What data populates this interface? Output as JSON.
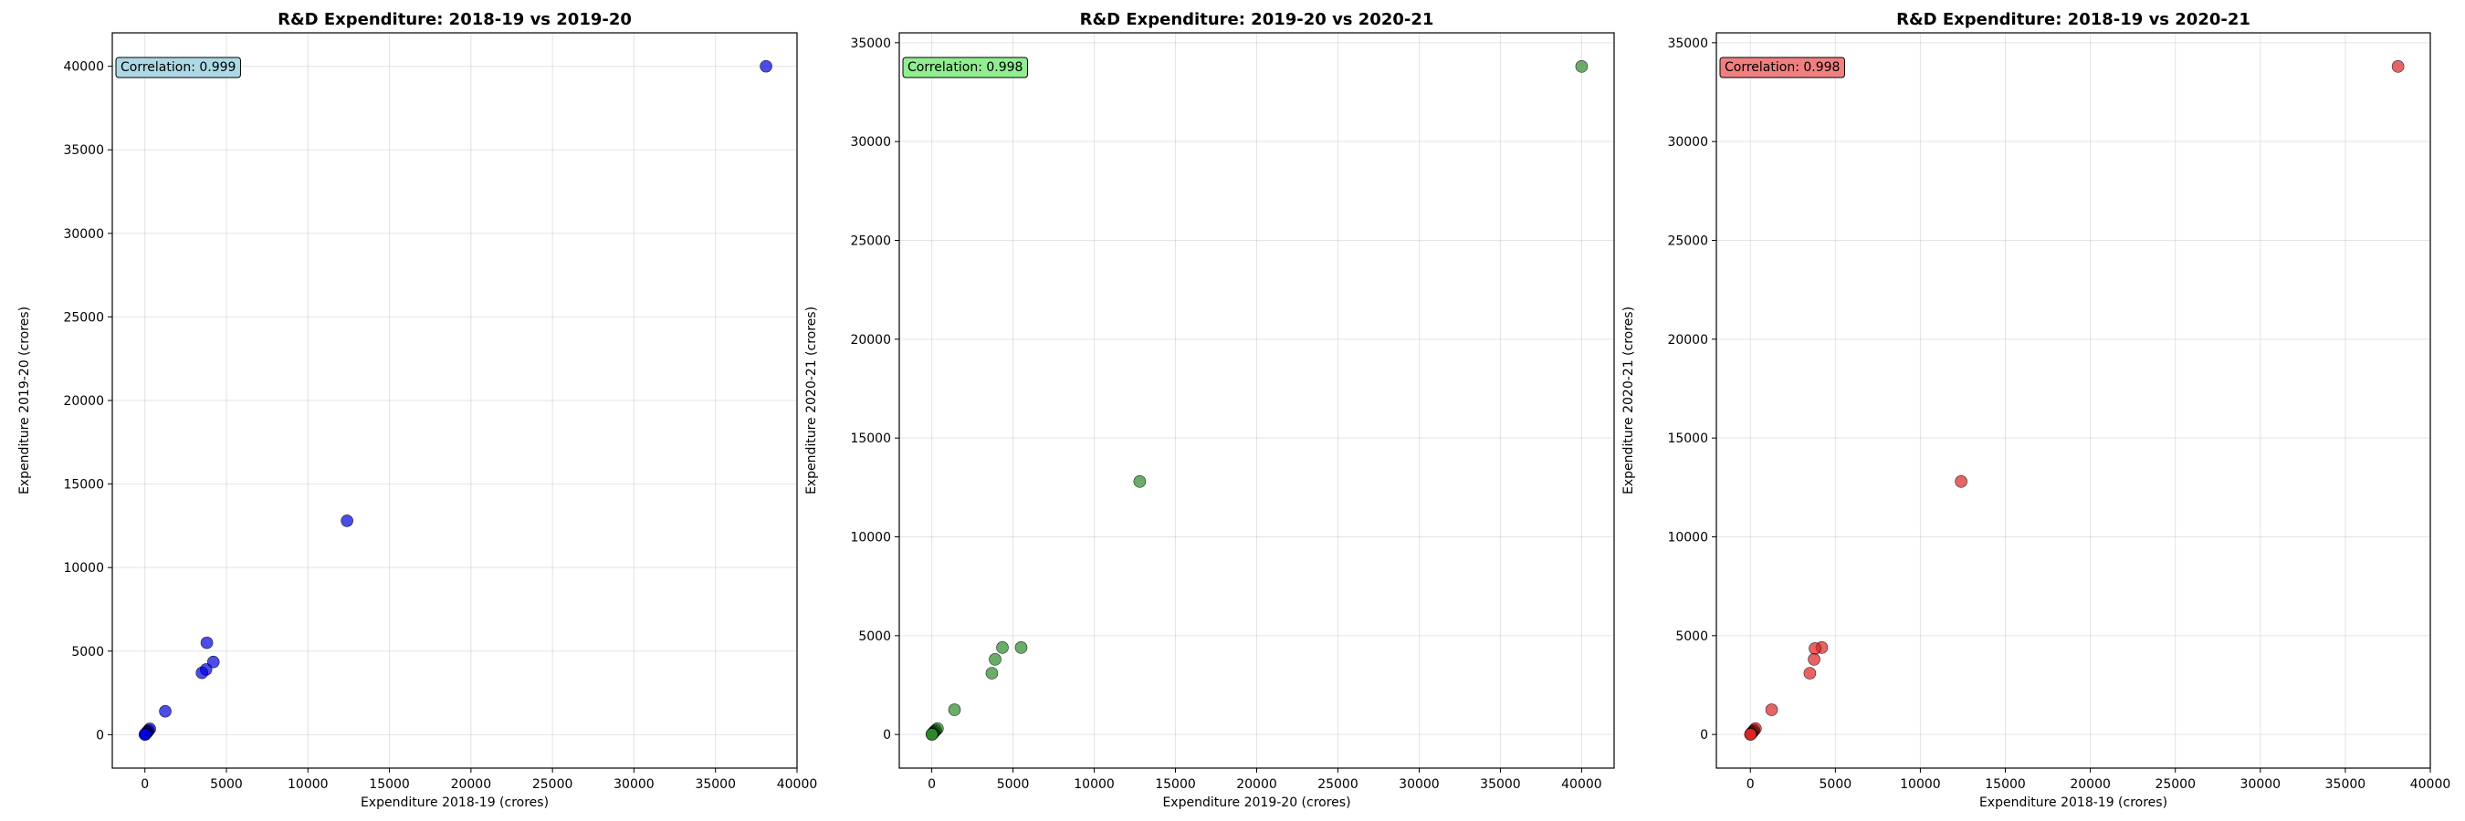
{
  "chart_data": [
    {
      "type": "scatter",
      "title": "R&D Expenditure: 2018-19 vs 2019-20",
      "xlabel": "Expenditure 2018-19 (crores)",
      "ylabel": "Expenditure 2019-20 (crores)",
      "xlim": [
        -2000,
        40000
      ],
      "ylim": [
        -2000,
        42000
      ],
      "xticks": [
        0,
        5000,
        10000,
        15000,
        20000,
        25000,
        30000,
        35000,
        40000
      ],
      "yticks": [
        0,
        5000,
        10000,
        15000,
        20000,
        25000,
        30000,
        35000,
        40000
      ],
      "grid": true,
      "annotation": "Correlation: 0.999",
      "annotation_color": "#add8e6",
      "point_color": "#0000dd",
      "points": [
        {
          "x": 38100,
          "y": 40000
        },
        {
          "x": 12400,
          "y": 12800
        },
        {
          "x": 3800,
          "y": 5500
        },
        {
          "x": 4200,
          "y": 4350
        },
        {
          "x": 3750,
          "y": 3900
        },
        {
          "x": 3500,
          "y": 3700
        },
        {
          "x": 1250,
          "y": 1400
        },
        {
          "x": 300,
          "y": 350
        },
        {
          "x": 220,
          "y": 250
        },
        {
          "x": 160,
          "y": 180
        },
        {
          "x": 120,
          "y": 130
        },
        {
          "x": 80,
          "y": 90
        },
        {
          "x": 50,
          "y": 60
        },
        {
          "x": 30,
          "y": 35
        },
        {
          "x": 15,
          "y": 20
        },
        {
          "x": 5,
          "y": 8
        }
      ]
    },
    {
      "type": "scatter",
      "title": "R&D Expenditure: 2019-20 vs 2020-21",
      "xlabel": "Expenditure 2019-20 (crores)",
      "ylabel": "Expenditure 2020-21 (crores)",
      "xlim": [
        -2000,
        42000
      ],
      "ylim": [
        -1700,
        35500
      ],
      "xticks": [
        0,
        5000,
        10000,
        15000,
        20000,
        25000,
        30000,
        35000,
        40000
      ],
      "yticks": [
        0,
        5000,
        10000,
        15000,
        20000,
        25000,
        30000,
        35000
      ],
      "grid": true,
      "annotation": "Correlation: 0.998",
      "annotation_color": "#90ee90",
      "point_color": "#2a8a2a",
      "points": [
        {
          "x": 40000,
          "y": 33800
        },
        {
          "x": 12800,
          "y": 12800
        },
        {
          "x": 5500,
          "y": 4400
        },
        {
          "x": 4350,
          "y": 4400
        },
        {
          "x": 3900,
          "y": 3800
        },
        {
          "x": 3700,
          "y": 3100
        },
        {
          "x": 1400,
          "y": 1250
        },
        {
          "x": 350,
          "y": 300
        },
        {
          "x": 250,
          "y": 220
        },
        {
          "x": 180,
          "y": 160
        },
        {
          "x": 130,
          "y": 120
        },
        {
          "x": 90,
          "y": 80
        },
        {
          "x": 60,
          "y": 50
        },
        {
          "x": 35,
          "y": 30
        },
        {
          "x": 20,
          "y": 15
        },
        {
          "x": 8,
          "y": 5
        }
      ]
    },
    {
      "type": "scatter",
      "title": "R&D Expenditure: 2018-19 vs 2020-21",
      "xlabel": "Expenditure 2018-19 (crores)",
      "ylabel": "Expenditure 2020-21 (crores)",
      "xlim": [
        -2000,
        40000
      ],
      "ylim": [
        -1700,
        35500
      ],
      "xticks": [
        0,
        5000,
        10000,
        15000,
        20000,
        25000,
        30000,
        35000,
        40000
      ],
      "yticks": [
        0,
        5000,
        10000,
        15000,
        20000,
        25000,
        30000,
        35000
      ],
      "grid": true,
      "annotation": "Correlation: 0.998",
      "annotation_color": "#f08080",
      "point_color": "#dd2222",
      "points": [
        {
          "x": 38100,
          "y": 33800
        },
        {
          "x": 12400,
          "y": 12800
        },
        {
          "x": 4200,
          "y": 4400
        },
        {
          "x": 3800,
          "y": 4350
        },
        {
          "x": 3750,
          "y": 3800
        },
        {
          "x": 3500,
          "y": 3100
        },
        {
          "x": 1250,
          "y": 1250
        },
        {
          "x": 300,
          "y": 300
        },
        {
          "x": 220,
          "y": 220
        },
        {
          "x": 160,
          "y": 160
        },
        {
          "x": 120,
          "y": 120
        },
        {
          "x": 80,
          "y": 80
        },
        {
          "x": 50,
          "y": 50
        },
        {
          "x": 30,
          "y": 30
        },
        {
          "x": 15,
          "y": 15
        },
        {
          "x": 5,
          "y": 5
        }
      ]
    }
  ]
}
